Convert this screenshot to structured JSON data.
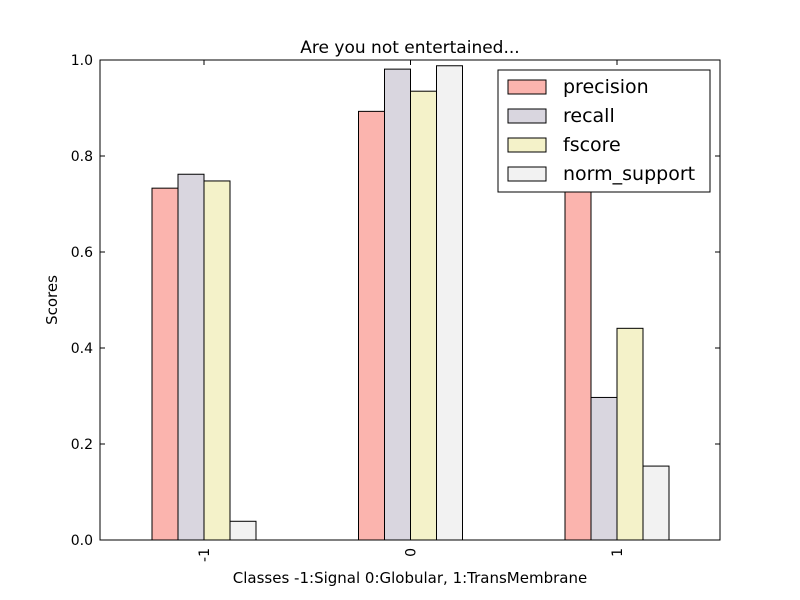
{
  "chart_data": {
    "type": "bar",
    "title": "Are you not entertained...",
    "xlabel": "Classes -1:Signal 0:Globular, 1:TransMembrane",
    "ylabel": "Scores",
    "ylim": [
      0,
      1.0
    ],
    "yticks": [
      "0.0",
      "0.2",
      "0.4",
      "0.6",
      "0.8",
      "1.0"
    ],
    "categories": [
      "-1",
      "0",
      "1"
    ],
    "legend_position": "top-right",
    "grid": false,
    "series": [
      {
        "name": "precision",
        "color": "#fbb4ae",
        "values": [
          0.733,
          0.893,
          0.843
        ]
      },
      {
        "name": "recall",
        "color": "#d9d6df",
        "values": [
          0.762,
          0.981,
          0.297
        ]
      },
      {
        "name": "fscore",
        "color": "#f4f2c9",
        "values": [
          0.748,
          0.935,
          0.441
        ]
      },
      {
        "name": "norm_support",
        "color": "#f2f2f2",
        "values": [
          0.039,
          0.988,
          0.154
        ]
      }
    ]
  }
}
